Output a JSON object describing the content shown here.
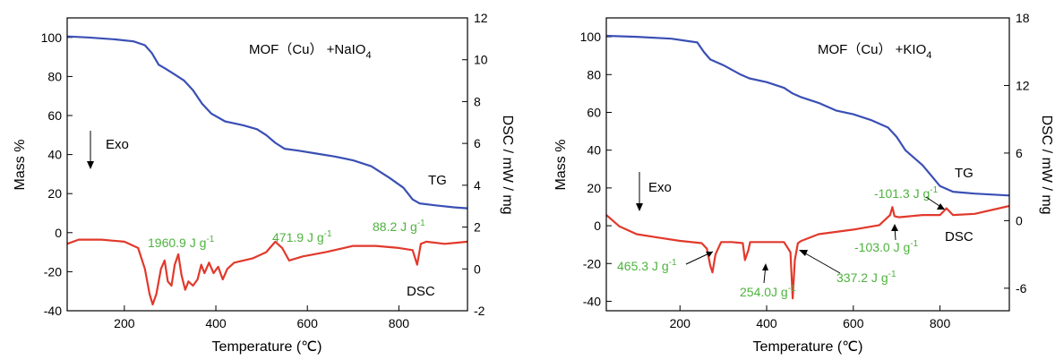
{
  "chart_data": [
    {
      "type": "line",
      "title": "MOF（Cu） +NaIO4",
      "title_main": "MOF（Cu） +NaIO",
      "title_sub": "4",
      "xlabel": "Temperature (℃)",
      "ylabel_left": "Mass %",
      "ylabel_right": "DSC / mW / mg",
      "xlim": [
        75,
        950
      ],
      "ylim_left": [
        -40,
        110
      ],
      "ylim_right": [
        -2,
        12
      ],
      "x_ticks": [
        200,
        400,
        600,
        800
      ],
      "y_left_ticks": [
        -40,
        -20,
        0,
        20,
        40,
        60,
        80,
        100
      ],
      "y_right_ticks": [
        -2,
        0,
        2,
        4,
        6,
        8,
        10,
        12
      ],
      "tg_label": "TG",
      "dsc_label": "DSC",
      "exo_label": "Exo",
      "series": [
        {
          "name": "TG",
          "axis": "left",
          "color": "#3a4fb4",
          "x": [
            75,
            120,
            180,
            220,
            245,
            260,
            275,
            290,
            310,
            330,
            350,
            370,
            390,
            420,
            460,
            490,
            510,
            530,
            550,
            580,
            620,
            660,
            700,
            740,
            780,
            810,
            830,
            845,
            880,
            920,
            950
          ],
          "y": [
            100.5,
            100,
            99,
            98,
            96,
            92,
            86,
            84,
            81,
            78,
            73,
            66,
            61,
            57,
            55,
            53,
            50,
            46,
            43,
            42,
            40.5,
            39,
            37,
            34,
            28,
            23,
            17,
            15,
            14,
            13,
            12.5
          ]
        },
        {
          "name": "DSC",
          "axis": "right",
          "color": "#e1392b",
          "x": [
            75,
            100,
            150,
            200,
            230,
            245,
            255,
            262,
            270,
            280,
            288,
            295,
            303,
            310,
            318,
            325,
            333,
            340,
            350,
            360,
            368,
            375,
            385,
            395,
            405,
            415,
            425,
            440,
            480,
            510,
            530,
            545,
            560,
            590,
            640,
            700,
            750,
            800,
            830,
            840,
            848,
            860,
            900,
            950
          ],
          "y": [
            1.2,
            1.4,
            1.4,
            1.3,
            1.0,
            0.0,
            -1.2,
            -1.7,
            -1.2,
            0.0,
            0.4,
            -0.6,
            -0.8,
            0.2,
            0.7,
            -0.3,
            -1.0,
            -0.6,
            -0.8,
            -0.5,
            0.2,
            -0.2,
            0.3,
            -0.2,
            0.1,
            -0.5,
            0.0,
            0.3,
            0.5,
            0.8,
            1.3,
            1.0,
            0.4,
            0.6,
            0.8,
            1.1,
            1.1,
            1.0,
            0.9,
            0.2,
            1.2,
            1.3,
            1.2,
            1.3
          ]
        }
      ],
      "annotations": [
        "1960.9 J g-1",
        "471.9 J g-1",
        "88.2 J g-1"
      ]
    },
    {
      "type": "line",
      "title": "MOF（Cu） +KIO4",
      "title_main": "MOF（Cu） +KIO",
      "title_sub": "4",
      "xlabel": "Temperature (℃)",
      "ylabel_left": "Mass %",
      "ylabel_right": "DSC / mW / mg",
      "xlim": [
        30,
        960
      ],
      "ylim_left": [
        -45,
        110
      ],
      "ylim_right": [
        -8,
        18
      ],
      "x_ticks": [
        200,
        400,
        600,
        800
      ],
      "y_left_ticks": [
        -40,
        -20,
        0,
        20,
        40,
        60,
        80,
        100
      ],
      "y_right_ticks": [
        -6,
        0,
        6,
        12,
        18
      ],
      "tg_label": "TG",
      "dsc_label": "DSC",
      "exo_label": "Exo",
      "series": [
        {
          "name": "TG",
          "axis": "left",
          "color": "#3a4fb4",
          "x": [
            30,
            100,
            180,
            240,
            255,
            270,
            300,
            340,
            360,
            400,
            440,
            460,
            480,
            520,
            560,
            600,
            640,
            680,
            700,
            720,
            760,
            800,
            830,
            880,
            960
          ],
          "y": [
            100.5,
            100,
            99,
            97,
            92,
            88,
            85,
            80,
            78,
            76,
            73,
            70,
            68,
            65,
            61,
            59,
            56,
            52,
            47,
            40,
            32,
            21,
            18,
            17,
            16
          ]
        },
        {
          "name": "DSC",
          "axis": "right",
          "color": "#e1392b",
          "x": [
            30,
            60,
            100,
            150,
            200,
            250,
            262,
            270,
            275,
            282,
            295,
            320,
            345,
            350,
            358,
            362,
            370,
            400,
            440,
            455,
            460,
            465,
            472,
            480,
            520,
            600,
            660,
            685,
            690,
            695,
            705,
            760,
            800,
            815,
            830,
            880,
            960
          ],
          "y": [
            0.5,
            -0.5,
            -1.2,
            -1.5,
            -1.8,
            -2.0,
            -2.5,
            -4.0,
            -4.6,
            -3.0,
            -1.9,
            -1.9,
            -2.0,
            -3.5,
            -2.6,
            -1.9,
            -1.9,
            -1.9,
            -1.9,
            -2.8,
            -6.9,
            -3.5,
            -2.0,
            -1.8,
            -1.2,
            -0.8,
            -0.4,
            0.5,
            1.2,
            0.4,
            0.3,
            0.5,
            0.5,
            1.1,
            0.5,
            0.6,
            1.3
          ]
        }
      ],
      "annotations": [
        "465.3 J g-1",
        "254.0J g-1",
        "337.2 J g-1",
        "-103.0 J g-1",
        "-101.3 J g-1"
      ]
    }
  ],
  "annotation_parts": {
    "left": {
      "a1": {
        "value": "1960.9 J g",
        "exp": "-1"
      },
      "a2": {
        "value": "471.9 J g",
        "exp": "-1"
      },
      "a3": {
        "value": "88.2 J g",
        "exp": "-1"
      }
    },
    "right": {
      "b1": {
        "value": "465.3 J g",
        "exp": "-1"
      },
      "b2": {
        "value": "254.0J g",
        "exp": "-1"
      },
      "b3": {
        "value": "337.2 J g",
        "exp": "-1"
      },
      "b4": {
        "value": "-103.0 J g",
        "exp": "-1"
      },
      "b5": {
        "value": "-101.3 J g",
        "exp": "-1"
      }
    }
  },
  "annotation_color": "#4db33d"
}
